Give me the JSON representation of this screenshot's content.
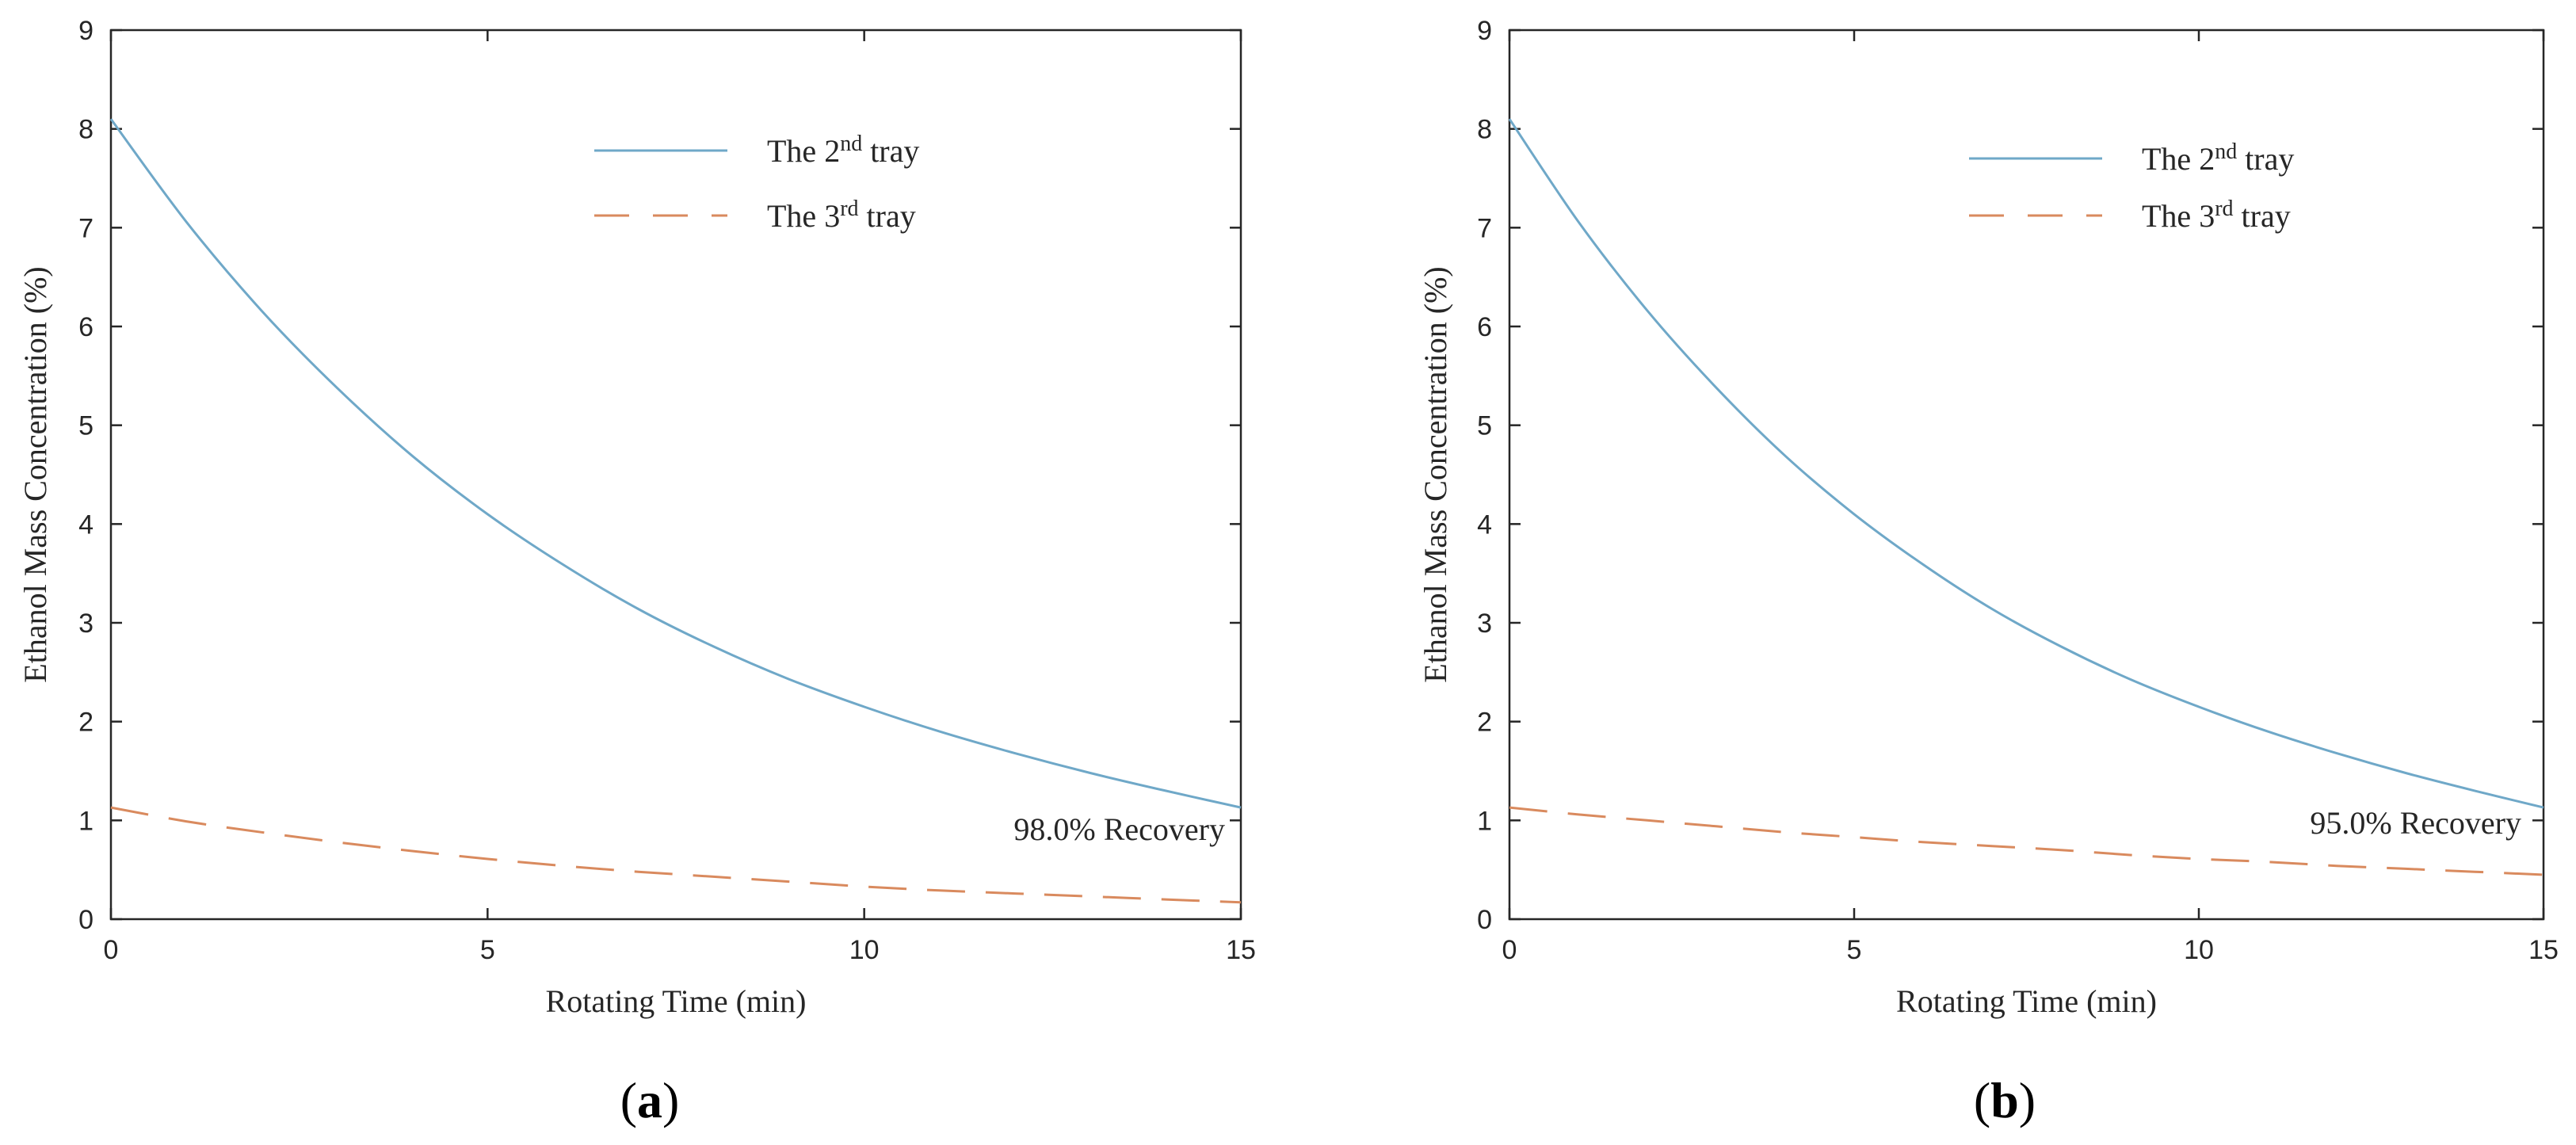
{
  "chart_data": [
    {
      "panel_label": "(a)",
      "panel_open": "(",
      "panel_letter": "a",
      "panel_close": ")",
      "type": "line",
      "xlabel": "Rotating Time (min)",
      "ylabel": "Ethanol Mass  Concentration (%)",
      "xlim": [
        0,
        15
      ],
      "ylim": [
        0,
        9
      ],
      "xticks": [
        0,
        5,
        10,
        15
      ],
      "yticks": [
        0,
        1,
        2,
        3,
        4,
        5,
        6,
        7,
        8,
        9
      ],
      "annotation": "98.0% Recovery",
      "legend_position": "top-center",
      "series": [
        {
          "name": "The 2nd tray",
          "legend_prefix": "The 2",
          "legend_sup": "nd",
          "legend_suffix": " tray",
          "style": "solid",
          "color": "#6fa8c8",
          "x": [
            0,
            1,
            2,
            3,
            4,
            5,
            6,
            7,
            8,
            9,
            10,
            11,
            12,
            13,
            14,
            15
          ],
          "values": [
            8.1,
            7.06,
            6.16,
            5.38,
            4.69,
            4.1,
            3.59,
            3.14,
            2.76,
            2.43,
            2.15,
            1.9,
            1.68,
            1.48,
            1.3,
            1.13
          ]
        },
        {
          "name": "The 3rd tray",
          "legend_prefix": "The 3",
          "legend_sup": "rd",
          "legend_suffix": " tray",
          "style": "dashed",
          "color": "#d98a5e",
          "x": [
            0,
            1,
            2,
            3,
            4,
            5,
            6,
            7,
            8,
            9,
            10,
            11,
            12,
            13,
            14,
            15
          ],
          "values": [
            1.13,
            0.99,
            0.88,
            0.78,
            0.69,
            0.61,
            0.54,
            0.48,
            0.43,
            0.38,
            0.33,
            0.29,
            0.26,
            0.23,
            0.2,
            0.17
          ]
        }
      ]
    },
    {
      "panel_label": "(b)",
      "panel_open": "(",
      "panel_letter": "b",
      "panel_close": ")",
      "type": "line",
      "xlabel": "Rotating Time (min)",
      "ylabel": "Ethanol Mass Concentration (%)",
      "xlim": [
        0,
        15
      ],
      "ylim": [
        0,
        9
      ],
      "xticks": [
        0,
        5,
        10,
        15
      ],
      "yticks": [
        0,
        1,
        2,
        3,
        4,
        5,
        6,
        7,
        8,
        9
      ],
      "annotation": "95.0% Recovery",
      "legend_position": "top-center",
      "series": [
        {
          "name": "The 2nd tray",
          "legend_prefix": "The 2",
          "legend_sup": "nd",
          "legend_suffix": " tray",
          "style": "solid",
          "color": "#6fa8c8",
          "x": [
            0,
            1,
            2,
            3,
            4,
            5,
            6,
            7,
            8,
            9,
            10,
            11,
            12,
            13,
            14,
            15
          ],
          "values": [
            8.1,
            7.06,
            6.16,
            5.38,
            4.69,
            4.1,
            3.59,
            3.14,
            2.76,
            2.43,
            2.15,
            1.9,
            1.68,
            1.48,
            1.3,
            1.13
          ]
        },
        {
          "name": "The 3rd tray",
          "legend_prefix": "The 3",
          "legend_sup": "rd",
          "legend_suffix": " tray",
          "style": "dashed",
          "color": "#d98a5e",
          "x": [
            0,
            1,
            2,
            3,
            4,
            5,
            6,
            7,
            8,
            9,
            10,
            11,
            12,
            13,
            14,
            15
          ],
          "values": [
            1.13,
            1.06,
            1.0,
            0.94,
            0.88,
            0.83,
            0.78,
            0.74,
            0.7,
            0.65,
            0.61,
            0.58,
            0.54,
            0.51,
            0.48,
            0.45
          ]
        }
      ]
    }
  ]
}
